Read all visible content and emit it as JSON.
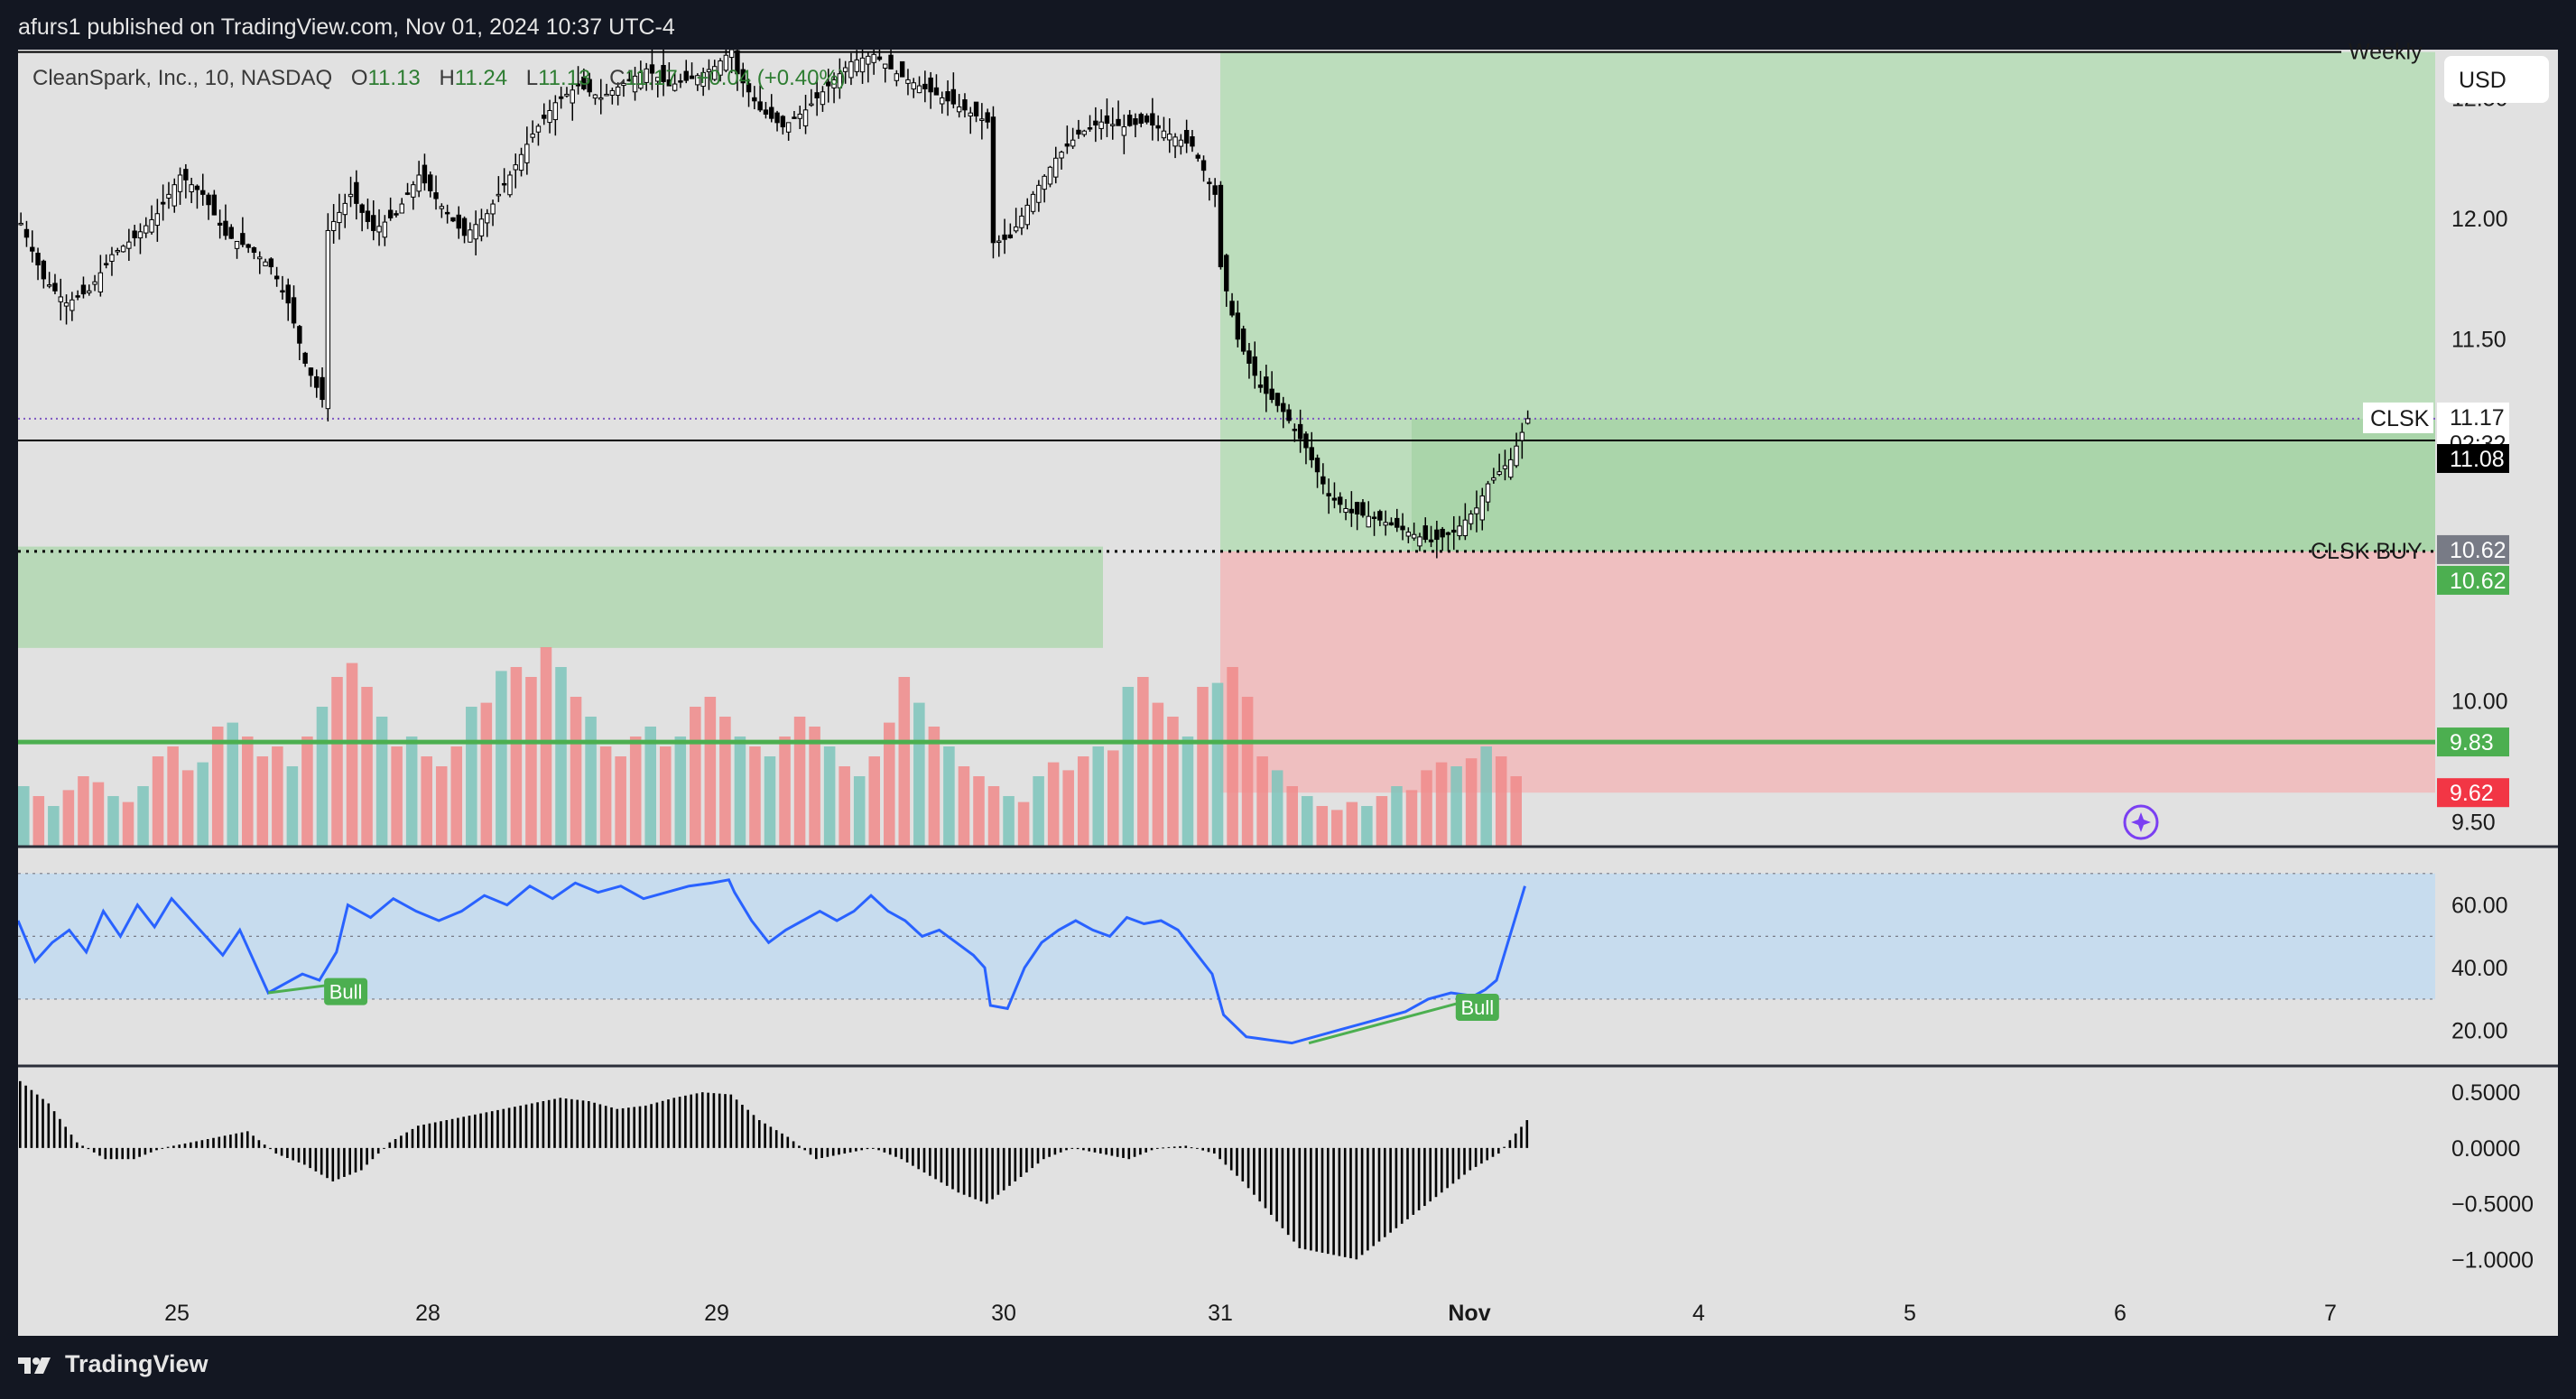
{
  "header": {
    "published": "afurs1 published on TradingView.com, Nov 01, 2024 10:37 UTC-4"
  },
  "footer": {
    "brand": "TradingView"
  },
  "colors": {
    "frame": "#131722",
    "pane": "#e1e1e1",
    "up_candle": "#ffffff",
    "down_candle": "#000000",
    "profit_zone": "#b5dcb5",
    "loss_zone": "#f2b6b8",
    "demand_zone": "#b8d9b8",
    "support_line": "#4caf50",
    "rsi_line": "#2962ff",
    "rsi_band": "#c7dcee",
    "divergence": "#4caf50",
    "volume_up": "#7cc4bb",
    "volume_down": "#f08a89"
  },
  "chart_data": [
    {
      "type": "candlestick",
      "legend": {
        "symbol": "CleanSpark, Inc., 10, NASDAQ",
        "open_label": "O",
        "open": "11.13",
        "high_label": "H",
        "high": "11.24",
        "low_label": "L",
        "low": "11.13",
        "close_label": "C",
        "close": "11.17",
        "change": "+0.04 (+0.40%)"
      },
      "currency": "USD",
      "x_ticks": [
        "25",
        "28",
        "29",
        "30",
        "31",
        "Nov",
        "4",
        "5",
        "6",
        "7"
      ],
      "y_ticks": [
        12.5,
        12.0,
        11.5,
        10.0,
        9.5
      ],
      "y_tick_labels": [
        "12.50",
        "12.00",
        "11.50",
        "10.00",
        "9.50"
      ],
      "ylim": [
        9.4,
        12.7
      ],
      "price_levels": [
        {
          "label": "Weekly",
          "value": 12.69
        },
        {
          "label": "CLSK",
          "value": 11.17,
          "countdown": "02:32"
        },
        {
          "label": "",
          "value": 11.08
        },
        {
          "label": "CLSK BUY",
          "value": 10.62
        },
        {
          "label": "",
          "value": 9.83
        }
      ],
      "price_badges": [
        {
          "text": "11.17",
          "style": "symbol"
        },
        {
          "text": "02:32",
          "style": "countdown"
        },
        {
          "text": "11.08",
          "style": "dark"
        },
        {
          "text": "10.62",
          "style": "gray"
        },
        {
          "text": "10.62",
          "style": "green"
        },
        {
          "text": "9.83",
          "style": "green"
        },
        {
          "text": "9.62",
          "style": "red"
        }
      ],
      "position": {
        "entry": 10.62,
        "target": 12.69,
        "stop": 9.62,
        "start": "Oct 31",
        "end": "Nov 7"
      },
      "demand_zone": {
        "top": 10.64,
        "bottom": 10.22,
        "start": "Oct 24",
        "end": "Oct 30"
      },
      "price_path": [
        [
          0,
          11.98
        ],
        [
          4,
          11.75
        ],
        [
          8,
          11.65
        ],
        [
          12,
          11.7
        ],
        [
          16,
          11.85
        ],
        [
          20,
          11.92
        ],
        [
          24,
          12.02
        ],
        [
          28,
          12.18
        ],
        [
          32,
          12.1
        ],
        [
          36,
          11.93
        ],
        [
          40,
          11.88
        ],
        [
          44,
          11.8
        ],
        [
          47,
          11.65
        ],
        [
          50,
          11.4
        ],
        [
          53,
          11.25
        ],
        [
          54,
          11.95
        ],
        [
          58,
          12.1
        ],
        [
          62,
          11.95
        ],
        [
          66,
          12.02
        ],
        [
          70,
          12.18
        ],
        [
          74,
          12.05
        ],
        [
          78,
          11.93
        ],
        [
          82,
          12.02
        ],
        [
          86,
          12.18
        ],
        [
          90,
          12.35
        ],
        [
          94,
          12.48
        ],
        [
          98,
          12.55
        ],
        [
          102,
          12.5
        ],
        [
          106,
          12.56
        ],
        [
          110,
          12.62
        ],
        [
          114,
          12.55
        ],
        [
          118,
          12.58
        ],
        [
          122,
          12.63
        ],
        [
          125,
          12.7
        ],
        [
          126,
          12.6
        ],
        [
          130,
          12.45
        ],
        [
          134,
          12.38
        ],
        [
          138,
          12.45
        ],
        [
          142,
          12.55
        ],
        [
          146,
          12.65
        ],
        [
          150,
          12.68
        ],
        [
          154,
          12.6
        ],
        [
          158,
          12.55
        ],
        [
          162,
          12.5
        ],
        [
          166,
          12.45
        ],
        [
          170,
          12.4
        ],
        [
          171,
          11.9
        ],
        [
          174,
          11.92
        ],
        [
          178,
          12.1
        ],
        [
          182,
          12.25
        ],
        [
          186,
          12.35
        ],
        [
          190,
          12.4
        ],
        [
          194,
          12.38
        ],
        [
          198,
          12.4
        ],
        [
          202,
          12.35
        ],
        [
          206,
          12.3
        ],
        [
          210,
          12.1
        ],
        [
          211,
          11.8
        ],
        [
          214,
          11.5
        ],
        [
          218,
          11.3
        ],
        [
          222,
          11.2
        ],
        [
          226,
          11.05
        ],
        [
          230,
          10.85
        ],
        [
          234,
          10.78
        ],
        [
          238,
          10.76
        ],
        [
          242,
          10.72
        ],
        [
          246,
          10.68
        ],
        [
          248,
          10.66
        ],
        [
          252,
          10.7
        ],
        [
          256,
          10.8
        ],
        [
          258,
          10.9
        ],
        [
          262,
          11.0
        ],
        [
          265,
          11.17
        ]
      ],
      "volume": {
        "max": 1.0,
        "bars": [
          0.3,
          0.25,
          0.2,
          0.28,
          0.35,
          0.32,
          0.25,
          0.22,
          0.3,
          0.45,
          0.5,
          0.38,
          0.42,
          0.6,
          0.62,
          0.55,
          0.45,
          0.5,
          0.4,
          0.55,
          0.7,
          0.85,
          0.92,
          0.8,
          0.65,
          0.5,
          0.55,
          0.45,
          0.4,
          0.5,
          0.7,
          0.72,
          0.88,
          0.9,
          0.85,
          1.0,
          0.9,
          0.75,
          0.65,
          0.5,
          0.45,
          0.55,
          0.6,
          0.5,
          0.55,
          0.7,
          0.75,
          0.65,
          0.55,
          0.5,
          0.45,
          0.55,
          0.65,
          0.6,
          0.5,
          0.4,
          0.35,
          0.45,
          0.62,
          0.85,
          0.72,
          0.6,
          0.5,
          0.4,
          0.35,
          0.3,
          0.25,
          0.22,
          0.35,
          0.42,
          0.38,
          0.45,
          0.5,
          0.48,
          0.8,
          0.85,
          0.72,
          0.65,
          0.55,
          0.8,
          0.82,
          0.9,
          0.75,
          0.45,
          0.38,
          0.3,
          0.25,
          0.2,
          0.18,
          0.22,
          0.2,
          0.25,
          0.3,
          0.28,
          0.38,
          0.42,
          0.4,
          0.44,
          0.5,
          0.45,
          0.35
        ],
        "ylim": [
          0,
          1
        ]
      }
    },
    {
      "type": "line",
      "name": "RSI",
      "y_ticks": [
        60,
        40,
        20
      ],
      "y_tick_labels": [
        "60.00",
        "40.00",
        "20.00"
      ],
      "ylim": [
        9,
        78
      ],
      "band": [
        30,
        70
      ],
      "midline": 50,
      "values": [
        [
          0,
          55
        ],
        [
          3,
          42
        ],
        [
          6,
          48
        ],
        [
          9,
          52
        ],
        [
          12,
          45
        ],
        [
          15,
          58
        ],
        [
          18,
          50
        ],
        [
          21,
          60
        ],
        [
          24,
          53
        ],
        [
          27,
          62
        ],
        [
          30,
          56
        ],
        [
          33,
          50
        ],
        [
          36,
          44
        ],
        [
          39,
          52
        ],
        [
          42,
          40
        ],
        [
          44,
          32
        ],
        [
          47,
          35
        ],
        [
          50,
          38
        ],
        [
          53,
          36
        ],
        [
          56,
          45
        ],
        [
          58,
          60
        ],
        [
          62,
          56
        ],
        [
          66,
          62
        ],
        [
          70,
          58
        ],
        [
          74,
          55
        ],
        [
          78,
          58
        ],
        [
          82,
          63
        ],
        [
          86,
          60
        ],
        [
          90,
          66
        ],
        [
          94,
          62
        ],
        [
          98,
          67
        ],
        [
          102,
          64
        ],
        [
          106,
          66
        ],
        [
          110,
          62
        ],
        [
          114,
          64
        ],
        [
          118,
          66
        ],
        [
          122,
          67
        ],
        [
          125,
          68
        ],
        [
          126,
          64
        ],
        [
          129,
          55
        ],
        [
          132,
          48
        ],
        [
          135,
          52
        ],
        [
          138,
          55
        ],
        [
          141,
          58
        ],
        [
          144,
          55
        ],
        [
          147,
          58
        ],
        [
          150,
          63
        ],
        [
          153,
          58
        ],
        [
          156,
          55
        ],
        [
          159,
          50
        ],
        [
          162,
          52
        ],
        [
          165,
          48
        ],
        [
          168,
          44
        ],
        [
          170,
          40
        ],
        [
          171,
          28
        ],
        [
          174,
          27
        ],
        [
          177,
          40
        ],
        [
          180,
          48
        ],
        [
          183,
          52
        ],
        [
          186,
          55
        ],
        [
          189,
          52
        ],
        [
          192,
          50
        ],
        [
          195,
          56
        ],
        [
          198,
          54
        ],
        [
          201,
          55
        ],
        [
          204,
          52
        ],
        [
          207,
          45
        ],
        [
          210,
          38
        ],
        [
          212,
          25
        ],
        [
          216,
          18
        ],
        [
          220,
          17
        ],
        [
          224,
          16
        ],
        [
          228,
          18
        ],
        [
          232,
          20
        ],
        [
          236,
          22
        ],
        [
          240,
          24
        ],
        [
          244,
          26
        ],
        [
          248,
          30
        ],
        [
          252,
          32
        ],
        [
          256,
          31
        ],
        [
          258,
          33
        ],
        [
          260,
          36
        ],
        [
          262,
          48
        ],
        [
          265,
          66
        ]
      ],
      "divergences": [
        {
          "label": "Bull",
          "from": [
            44,
            32
          ],
          "to": [
            57,
            35
          ]
        },
        {
          "label": "Bull",
          "from": [
            227,
            16
          ],
          "to": [
            256,
            30
          ]
        }
      ]
    },
    {
      "type": "histogram",
      "name": "Oscillator",
      "y_ticks": [
        0.5,
        0.0,
        -0.5,
        -1.0
      ],
      "y_tick_labels": [
        "0.5000",
        "0.0000",
        "−0.5000",
        "−1.0000"
      ],
      "ylim": [
        -1.2,
        0.72
      ],
      "values": [
        [
          0,
          0.6
        ],
        [
          5,
          0.4
        ],
        [
          10,
          0.05
        ],
        [
          15,
          -0.1
        ],
        [
          20,
          -0.1
        ],
        [
          25,
          0.0
        ],
        [
          30,
          0.05
        ],
        [
          35,
          0.1
        ],
        [
          40,
          0.15
        ],
        [
          45,
          -0.05
        ],
        [
          50,
          -0.15
        ],
        [
          55,
          -0.3
        ],
        [
          60,
          -0.2
        ],
        [
          65,
          0.05
        ],
        [
          70,
          0.2
        ],
        [
          75,
          0.25
        ],
        [
          80,
          0.3
        ],
        [
          85,
          0.35
        ],
        [
          90,
          0.4
        ],
        [
          95,
          0.45
        ],
        [
          100,
          0.42
        ],
        [
          105,
          0.35
        ],
        [
          110,
          0.38
        ],
        [
          115,
          0.45
        ],
        [
          120,
          0.5
        ],
        [
          125,
          0.48
        ],
        [
          130,
          0.25
        ],
        [
          135,
          0.1
        ],
        [
          140,
          -0.1
        ],
        [
          145,
          -0.05
        ],
        [
          150,
          0.0
        ],
        [
          155,
          -0.1
        ],
        [
          160,
          -0.25
        ],
        [
          165,
          -0.4
        ],
        [
          170,
          -0.5
        ],
        [
          175,
          -0.3
        ],
        [
          180,
          -0.1
        ],
        [
          185,
          0.0
        ],
        [
          190,
          -0.05
        ],
        [
          195,
          -0.1
        ],
        [
          200,
          0.0
        ],
        [
          205,
          0.02
        ],
        [
          210,
          -0.05
        ],
        [
          215,
          -0.3
        ],
        [
          220,
          -0.6
        ],
        [
          225,
          -0.9
        ],
        [
          230,
          -0.95
        ],
        [
          235,
          -1.0
        ],
        [
          240,
          -0.8
        ],
        [
          245,
          -0.6
        ],
        [
          250,
          -0.4
        ],
        [
          255,
          -0.2
        ],
        [
          260,
          -0.05
        ],
        [
          265,
          0.25
        ]
      ]
    }
  ]
}
